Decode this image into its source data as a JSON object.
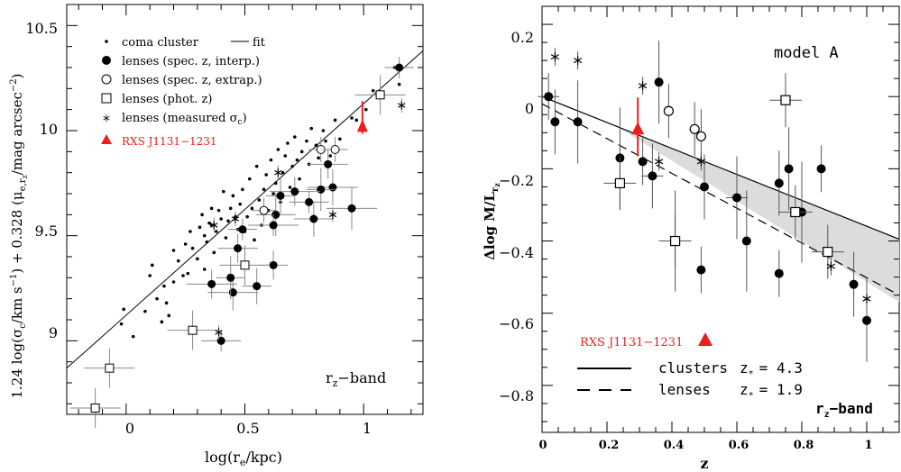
{
  "chart_data": [
    {
      "type": "scatter",
      "xlabel": "log(r_e/kpc)",
      "ylabel": "1.24 log(σ_c/km s⁻¹) + 0.328 (μ_e,r_z/mag arcsec⁻²)",
      "xlim": [
        -0.25,
        1.25
      ],
      "ylim": [
        8.65,
        10.6
      ],
      "xticks": [
        "0",
        "0.5",
        "1"
      ],
      "yticks": [
        "9",
        "9.5",
        "10",
        "10.5"
      ],
      "band_label": "r_z–band",
      "legend_placement": "top-left",
      "legend": [
        {
          "symbol": "small-dot",
          "label": "coma cluster"
        },
        {
          "symbol": "line",
          "label": "fit"
        },
        {
          "symbol": "filled-circle",
          "label": "lenses (spec. z, interp.)"
        },
        {
          "symbol": "open-circle",
          "label": "lenses (spec. z, extrap.)"
        },
        {
          "symbol": "open-square",
          "label": "lenses (phot. z)"
        },
        {
          "symbol": "asterisk",
          "label": "lenses (measured σ_c)"
        },
        {
          "symbol": "red-triangle",
          "label": "RXS J1131–1231"
        }
      ],
      "fit_line": {
        "x": [
          -0.25,
          1.25
        ],
        "y": [
          8.87,
          10.38
        ]
      },
      "series": [
        {
          "name": "coma cluster",
          "points": [
            [
              0.03,
              9.02
            ],
            [
              -0.02,
              9.08
            ],
            [
              -0.01,
              9.15
            ],
            [
              0.08,
              9.14
            ],
            [
              0.1,
              9.31
            ],
            [
              0.11,
              9.36
            ],
            [
              0.13,
              9.2
            ],
            [
              0.16,
              9.26
            ],
            [
              0.18,
              9.12
            ],
            [
              0.2,
              9.28
            ],
            [
              0.2,
              9.43
            ],
            [
              0.22,
              9.38
            ],
            [
              0.24,
              9.31
            ],
            [
              0.25,
              9.46
            ],
            [
              0.27,
              9.52
            ],
            [
              0.28,
              9.44
            ],
            [
              0.3,
              9.39
            ],
            [
              0.31,
              9.54
            ],
            [
              0.32,
              9.6
            ],
            [
              0.33,
              9.5
            ],
            [
              0.34,
              9.47
            ],
            [
              0.35,
              9.56
            ],
            [
              0.36,
              9.63
            ],
            [
              0.37,
              9.42
            ],
            [
              0.38,
              9.52
            ],
            [
              0.39,
              9.62
            ],
            [
              0.4,
              9.58
            ],
            [
              0.41,
              9.71
            ],
            [
              0.42,
              9.49
            ],
            [
              0.43,
              9.57
            ],
            [
              0.44,
              9.63
            ],
            [
              0.45,
              9.69
            ],
            [
              0.46,
              9.59
            ],
            [
              0.47,
              9.53
            ],
            [
              0.48,
              9.65
            ],
            [
              0.49,
              9.72
            ],
            [
              0.5,
              9.52
            ],
            [
              0.51,
              9.59
            ],
            [
              0.52,
              9.77
            ],
            [
              0.53,
              9.63
            ],
            [
              0.54,
              9.48
            ],
            [
              0.55,
              9.83
            ],
            [
              0.56,
              9.67
            ],
            [
              0.57,
              9.55
            ],
            [
              0.58,
              9.72
            ],
            [
              0.59,
              9.79
            ],
            [
              0.6,
              9.62
            ],
            [
              0.61,
              9.86
            ],
            [
              0.62,
              9.7
            ],
            [
              0.63,
              9.75
            ],
            [
              0.64,
              9.91
            ],
            [
              0.65,
              9.66
            ],
            [
              0.66,
              9.8
            ],
            [
              0.67,
              9.88
            ],
            [
              0.68,
              9.94
            ],
            [
              0.69,
              9.73
            ],
            [
              0.7,
              9.83
            ],
            [
              0.71,
              9.97
            ],
            [
              0.72,
              9.86
            ],
            [
              0.73,
              9.77
            ],
            [
              0.74,
              9.9
            ],
            [
              0.76,
              9.95
            ],
            [
              0.77,
              9.84
            ],
            [
              0.78,
              10.01
            ],
            [
              0.8,
              9.93
            ],
            [
              0.81,
              9.87
            ],
            [
              0.83,
              10.0
            ],
            [
              0.84,
              9.95
            ],
            [
              0.86,
              9.88
            ],
            [
              0.88,
              10.05
            ],
            [
              0.9,
              9.96
            ],
            [
              0.95,
              10.06
            ],
            [
              0.97,
              10.05
            ],
            [
              1.01,
              10.1
            ],
            [
              1.04,
              10.19
            ],
            [
              1.13,
              10.3
            ],
            [
              1.15,
              10.22
            ],
            [
              0.36,
              9.55
            ],
            [
              0.33,
              9.34
            ],
            [
              0.26,
              9.32
            ],
            [
              0.17,
              9.18
            ],
            [
              0.15,
              9.09
            ]
          ]
        },
        {
          "name": "lenses (spec. z, interp.)",
          "points": [
            [
              1.15,
              10.3
            ],
            [
              0.85,
              9.84
            ],
            [
              0.87,
              9.73
            ],
            [
              0.82,
              9.72
            ],
            [
              0.77,
              9.66
            ],
            [
              0.71,
              9.71
            ],
            [
              0.65,
              9.69
            ],
            [
              0.63,
              9.6
            ],
            [
              0.62,
              9.55
            ],
            [
              0.62,
              9.36
            ],
            [
              0.79,
              9.58
            ],
            [
              0.95,
              9.63
            ],
            [
              0.49,
              9.53
            ],
            [
              0.47,
              9.44
            ],
            [
              0.45,
              9.23
            ],
            [
              0.44,
              9.3
            ],
            [
              0.4,
              9.0
            ],
            [
              0.36,
              9.27
            ],
            [
              0.55,
              9.26
            ]
          ]
        },
        {
          "name": "lenses (spec. z, extrap.)",
          "points": [
            [
              0.58,
              9.62
            ],
            [
              0.82,
              9.91
            ],
            [
              0.88,
              9.91
            ]
          ]
        },
        {
          "name": "lenses (phot. z)",
          "points": [
            [
              1.07,
              10.17
            ],
            [
              0.5,
              9.36
            ],
            [
              0.28,
              9.05
            ],
            [
              -0.07,
              8.87
            ],
            [
              -0.13,
              8.68
            ]
          ]
        },
        {
          "name": "lenses (measured σ_c)",
          "points": [
            [
              1.16,
              10.12
            ],
            [
              0.87,
              9.6
            ],
            [
              0.64,
              9.8
            ],
            [
              0.37,
              9.55
            ],
            [
              0.46,
              9.58
            ],
            [
              0.39,
              9.04
            ]
          ]
        },
        {
          "name": "RXS J1131–1231",
          "points": [
            [
              0.995,
              10.02
            ]
          ]
        }
      ]
    },
    {
      "type": "scatter",
      "xlabel": "z",
      "ylabel": "Δlog M/L_r_z",
      "xlim": [
        0,
        1.1
      ],
      "ylim": [
        -0.93,
        0.25
      ],
      "xticks": [
        "0",
        "0.2",
        "0.4",
        "0.6",
        "0.8",
        "1"
      ],
      "yticks": [
        "0.2",
        "0",
        "−0.2",
        "−0.4",
        "−0.6",
        "−0.8"
      ],
      "model_label": "model A",
      "band_label": "r_z–band",
      "red_label": "RXS J1131–1231",
      "legend_placement": "bottom-left",
      "legend": [
        {
          "style": "solid",
          "label": "clusters",
          "z_label": "z_* = 4.3"
        },
        {
          "style": "dashed",
          "label": "lenses",
          "z_label": "z_* = 1.9"
        }
      ],
      "clusters_line": {
        "x": [
          0,
          1.1
        ],
        "y": [
          0.0,
          -0.395
        ]
      },
      "lenses_line": {
        "x": [
          0,
          1.1
        ],
        "y": [
          -0.02,
          -0.55
        ]
      },
      "series": [
        {
          "name": "filled circles",
          "points": [
            [
              0.02,
              0.0
            ],
            [
              0.04,
              -0.07
            ],
            [
              0.11,
              -0.07
            ],
            [
              0.24,
              -0.17
            ],
            [
              0.31,
              -0.18
            ],
            [
              0.34,
              -0.22
            ],
            [
              0.36,
              0.04
            ],
            [
              0.41,
              -0.4
            ],
            [
              0.49,
              -0.48
            ],
            [
              0.5,
              -0.25
            ],
            [
              0.6,
              -0.28
            ],
            [
              0.63,
              -0.4
            ],
            [
              0.73,
              -0.49
            ],
            [
              0.73,
              -0.24
            ],
            [
              0.76,
              -0.2
            ],
            [
              0.8,
              -0.32
            ],
            [
              0.86,
              -0.2
            ],
            [
              0.96,
              -0.52
            ],
            [
              1.0,
              -0.62
            ]
          ]
        },
        {
          "name": "open circles",
          "points": [
            [
              0.39,
              -0.04
            ],
            [
              0.47,
              -0.09
            ],
            [
              0.49,
              -0.11
            ]
          ]
        },
        {
          "name": "open squares",
          "points": [
            [
              0.24,
              -0.24
            ],
            [
              0.41,
              -0.4
            ],
            [
              0.75,
              -0.01
            ],
            [
              0.78,
              -0.32
            ],
            [
              0.88,
              -0.43
            ]
          ]
        },
        {
          "name": "asterisks",
          "points": [
            [
              0.04,
              0.11
            ],
            [
              0.11,
              0.1
            ],
            [
              0.31,
              0.03
            ],
            [
              0.36,
              -0.18
            ],
            [
              0.49,
              -0.18
            ],
            [
              0.89,
              -0.47
            ],
            [
              1.0,
              -0.56
            ]
          ]
        },
        {
          "name": "RXS J1131–1231",
          "points": [
            [
              0.295,
              -0.09
            ]
          ]
        }
      ]
    }
  ],
  "left_text": {
    "x_tick_0": "0",
    "x_tick_05": "0.5",
    "x_tick_1": "1",
    "y_tick_9": "9",
    "y_tick_95": "9.5",
    "y_tick_10": "10",
    "y_tick_105": "10.5",
    "legend_1": "coma cluster",
    "legend_fit": "fit",
    "legend_2": "lenses (spec. z, interp.)",
    "legend_3": "lenses (spec. z, extrap.)",
    "legend_4": "lenses (phot. z)",
    "legend_5": "lenses (measured σ",
    "legend_5_sub": "c",
    "legend_5_close": ")",
    "legend_red": "RXS J1131−1231",
    "band": "r",
    "band_sub": "z",
    "band_rest": "−band",
    "xlabel_a": "log(r",
    "xlabel_sub": "e",
    "xlabel_b": "/kpc)",
    "ylabel_a": "1.24 log(σ",
    "ylabel_sub1": "c",
    "ylabel_b": "/km s",
    "ylabel_sup": "−1",
    "ylabel_c": ") + 0.328 (μ",
    "ylabel_sub2": "e,r",
    "ylabel_sub2b": "z",
    "ylabel_d": "/mag arcsec",
    "ylabel_sup2": "−2",
    "ylabel_e": ")"
  },
  "right_text": {
    "y_tick_02": "0.2",
    "y_tick_0": "0",
    "y_tick_m02": "−0.2",
    "y_tick_m04": "−0.4",
    "y_tick_m06": "−0.6",
    "y_tick_m08": "−0.8",
    "x_tick_0": "0",
    "x_tick_02": "0.2",
    "x_tick_04": "0.4",
    "x_tick_06": "0.6",
    "x_tick_08": "0.8",
    "x_tick_1": "1",
    "model": "model A",
    "red_label": "RXS J1131−1231",
    "leg_clusters": "clusters",
    "leg_clusters_z": "z",
    "leg_clusters_zsub": "*",
    "leg_clusters_val": "= 4.3",
    "leg_lenses": "lenses",
    "leg_lenses_z": "z",
    "leg_lenses_zsub": "*",
    "leg_lenses_val": "= 1.9",
    "band": "r",
    "band_sub": "z",
    "band_rest": "−band",
    "xlabel": "z",
    "ylabel_a": "Δlog M/L",
    "ylabel_sub": "r",
    "ylabel_subsub": "z"
  },
  "colors": {
    "accent_red": "#ee1c1c",
    "band_fill": "#dcdcdc",
    "ink": "#000000"
  }
}
